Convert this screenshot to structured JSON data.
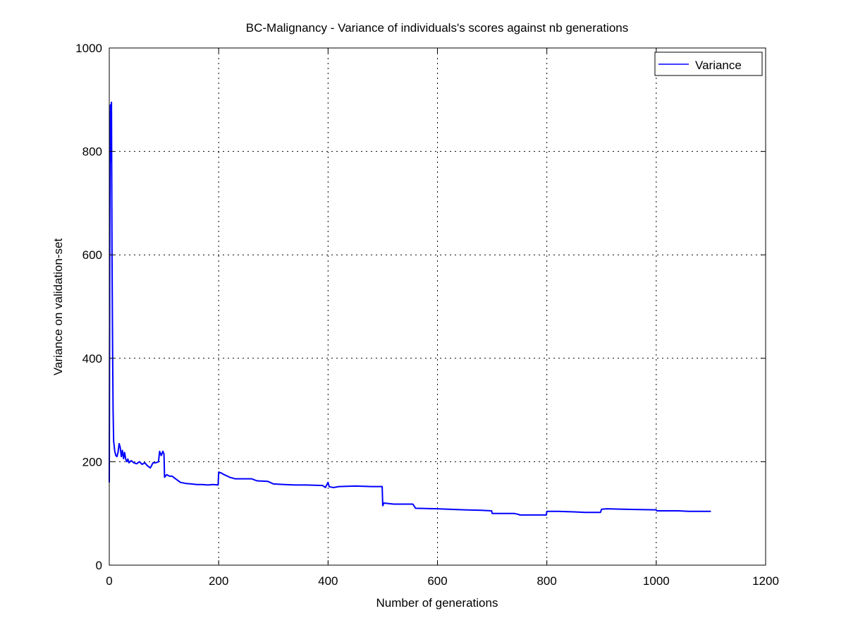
{
  "chart_data": {
    "type": "line",
    "title": "BC-Malignancy - Variance of individuals's scores against nb generations",
    "xlabel": "Number of generations",
    "ylabel": "Variance on validation-set",
    "xlim": [
      0,
      1200
    ],
    "ylim": [
      0,
      1000
    ],
    "xticks": [
      0,
      200,
      400,
      600,
      800,
      1000,
      1200
    ],
    "yticks": [
      0,
      200,
      400,
      600,
      800,
      1000
    ],
    "grid": true,
    "legend_position": "top-right",
    "colors": {
      "series": "#0000ff",
      "axes": "#000000",
      "background": "#ffffff"
    },
    "series": [
      {
        "name": "Variance",
        "x": [
          0,
          1,
          2,
          3,
          4,
          5,
          6,
          7,
          8,
          10,
          12,
          14,
          16,
          18,
          20,
          22,
          24,
          26,
          28,
          30,
          32,
          34,
          36,
          40,
          45,
          50,
          55,
          60,
          65,
          70,
          75,
          80,
          85,
          90,
          92,
          95,
          98,
          100,
          101,
          105,
          110,
          115,
          120,
          130,
          140,
          150,
          160,
          170,
          180,
          190,
          199,
          200,
          205,
          210,
          220,
          230,
          260,
          270,
          290,
          300,
          320,
          340,
          360,
          390,
          395,
          400,
          402,
          405,
          410,
          420,
          450,
          480,
          499,
          500,
          502,
          520,
          545,
          555,
          560,
          600,
          620,
          650,
          680,
          699,
          700,
          720,
          740,
          749,
          750,
          780,
          799,
          800,
          820,
          850,
          870,
          898,
          900,
          910,
          940,
          1000,
          1001,
          1040,
          1060,
          1100
        ],
        "values": [
          160,
          650,
          890,
          780,
          895,
          600,
          420,
          300,
          240,
          220,
          212,
          210,
          218,
          235,
          228,
          210,
          222,
          206,
          218,
          205,
          200,
          205,
          198,
          202,
          198,
          196,
          200,
          195,
          198,
          192,
          188,
          198,
          198,
          200,
          220,
          212,
          220,
          215,
          170,
          175,
          172,
          172,
          168,
          160,
          158,
          157,
          156,
          156,
          155,
          156,
          155,
          180,
          178,
          175,
          170,
          167,
          167,
          163,
          162,
          157,
          156,
          155,
          155,
          154,
          150,
          160,
          152,
          151,
          150,
          152,
          153,
          152,
          152,
          115,
          120,
          118,
          118,
          118,
          110,
          109,
          108,
          107,
          106,
          105,
          100,
          100,
          100,
          98,
          97,
          97,
          97,
          104,
          104,
          103,
          102,
          102,
          108,
          109,
          108,
          107,
          105,
          105,
          104,
          104
        ]
      }
    ]
  }
}
